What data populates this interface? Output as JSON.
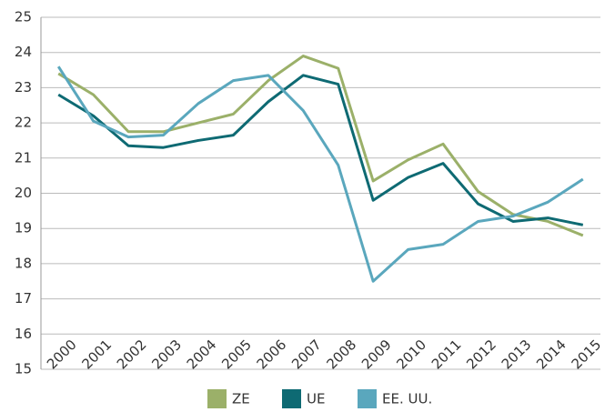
{
  "chart_data": {
    "type": "line",
    "categories": [
      "2000",
      "2001",
      "2002",
      "2003",
      "2004",
      "2005",
      "2006",
      "2007",
      "2008",
      "2009",
      "2010",
      "2011",
      "2012",
      "2013",
      "2014",
      "2015"
    ],
    "series": [
      {
        "name": "ZE",
        "color": "#9bb069",
        "values": [
          23.4,
          22.8,
          21.75,
          21.75,
          22.0,
          22.25,
          23.2,
          23.9,
          23.55,
          20.35,
          20.95,
          21.4,
          20.05,
          19.4,
          19.2,
          18.8
        ]
      },
      {
        "name": "UE",
        "color": "#0e6a73",
        "values": [
          22.8,
          22.2,
          21.35,
          21.3,
          21.5,
          21.65,
          22.6,
          23.35,
          23.1,
          19.8,
          20.45,
          20.85,
          19.7,
          19.2,
          19.3,
          19.1
        ]
      },
      {
        "name": "EE. UU.",
        "color": "#5aa7bd",
        "values": [
          23.6,
          22.05,
          21.6,
          21.65,
          22.55,
          23.2,
          23.35,
          22.35,
          20.8,
          17.5,
          18.4,
          18.55,
          19.2,
          19.35,
          19.75,
          20.4
        ]
      }
    ],
    "ylim": [
      15,
      25
    ],
    "yticks": [
      15,
      16,
      17,
      18,
      19,
      20,
      21,
      22,
      23,
      24,
      25
    ],
    "grid": true
  }
}
